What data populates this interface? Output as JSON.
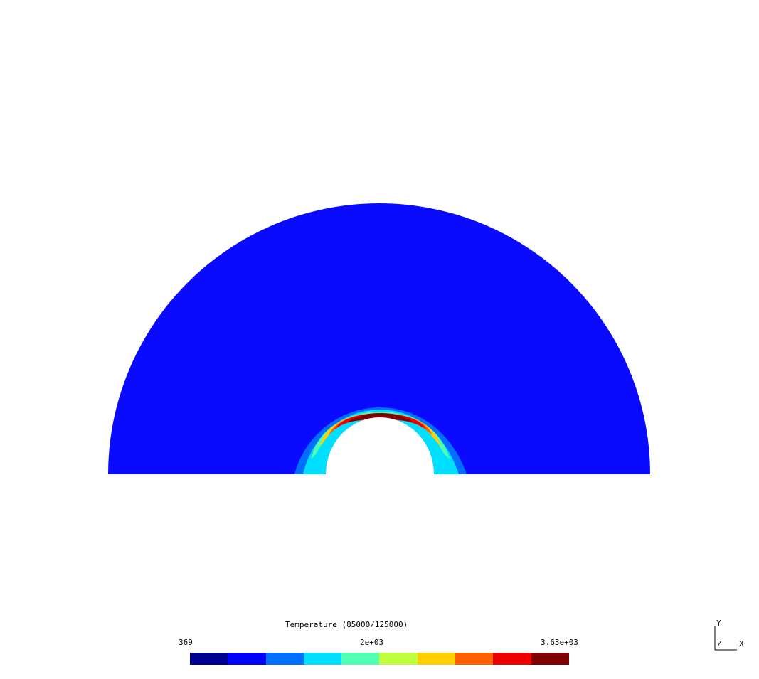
{
  "plot": {
    "colorbar": {
      "title": "Temperature (85000/125000)",
      "min_label": "369",
      "mid_label": "2e+03",
      "max_label": "3.63e+03",
      "min_value": 369,
      "max_value": 3630,
      "colors": [
        "#00008f",
        "#0000ff",
        "#006fff",
        "#00dfff",
        "#50ffaf",
        "#bfff40",
        "#ffcf00",
        "#ff5f00",
        "#ef0000",
        "#7f0000"
      ]
    },
    "field_colors": {
      "background_region": "#0a0aff",
      "hot_core": "#7f0000",
      "hot_layer": "#ef0000",
      "warm_layer": "#ff5f00",
      "mid_layer": "#ffcf00",
      "cool_layer": "#50ffaf",
      "cold_layer": "#00dfff",
      "outer_layer": "#006fff"
    },
    "axes": {
      "y_label": "Y",
      "z_label": "Z",
      "x_label": "X"
    }
  }
}
